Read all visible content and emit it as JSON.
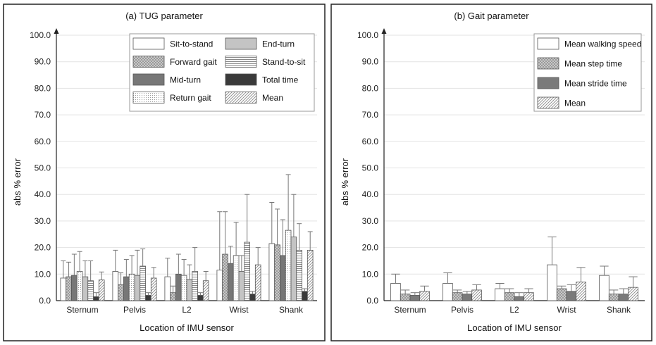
{
  "colors": {
    "sit_to_stand": "#ffffff",
    "forward_gait": "#b8b8b8",
    "mid_turn": "#777777",
    "return_gait": "#ececec",
    "end_turn": "#c4c4c4",
    "stand_to_sit": "#f0f0f0",
    "total_time": "#3a3a3a",
    "mean": "#e8e8e8",
    "mean_walking_speed": "#ffffff",
    "mean_step_time": "#b5b5b5",
    "mean_stride_time": "#7a7a7a"
  },
  "chart_data": [
    {
      "type": "bar",
      "title": "(a) TUG parameter",
      "xlabel": "Location of IMU sensor",
      "ylabel": "abs % error",
      "ylim": [
        0,
        100
      ],
      "yticks": [
        "0.0",
        "10.0",
        "20.0",
        "30.0",
        "40.0",
        "50.0",
        "60.0",
        "70.0",
        "80.0",
        "90.0",
        "100.0"
      ],
      "grid": true,
      "legend": "top-right",
      "categories": [
        "Sternum",
        "Pelvis",
        "L2",
        "Wrist",
        "Shank"
      ],
      "series": [
        {
          "name": "Sit-to-stand",
          "key": "sit_to_stand",
          "pattern": "none",
          "values": [
            8.5,
            11.0,
            9.0,
            11.5,
            21.5
          ],
          "errors": [
            6.5,
            8.0,
            7.0,
            22.0,
            15.5
          ]
        },
        {
          "name": "Forward gait",
          "key": "forward_gait",
          "pattern": "checker",
          "values": [
            9.0,
            6.0,
            3.0,
            17.5,
            21.0
          ],
          "errors": [
            5.5,
            4.5,
            2.5,
            16.0,
            13.5
          ]
        },
        {
          "name": "Mid-turn",
          "key": "mid_turn",
          "pattern": "none",
          "values": [
            9.5,
            9.0,
            10.0,
            14.0,
            17.0
          ],
          "errors": [
            8.0,
            6.5,
            7.5,
            6.5,
            13.5
          ]
        },
        {
          "name": "Return gait",
          "key": "return_gait",
          "pattern": "dots",
          "values": [
            11.0,
            10.0,
            9.5,
            17.0,
            26.5
          ],
          "errors": [
            7.5,
            7.0,
            6.0,
            12.5,
            21.0
          ]
        },
        {
          "name": "End-turn",
          "key": "end_turn",
          "pattern": "none",
          "values": [
            9.0,
            9.5,
            8.0,
            11.0,
            24.0
          ],
          "errors": [
            6.0,
            9.5,
            5.5,
            6.0,
            16.0
          ]
        },
        {
          "name": "Stand-to-sit",
          "key": "stand_to_sit",
          "pattern": "hlines",
          "values": [
            7.5,
            13.0,
            11.0,
            22.0,
            19.0
          ],
          "errors": [
            7.5,
            6.5,
            9.0,
            18.0,
            10.0
          ]
        },
        {
          "name": "Total time",
          "key": "total_time",
          "pattern": "none",
          "values": [
            1.5,
            2.0,
            2.0,
            2.5,
            3.5
          ],
          "errors": [
            1.5,
            1.0,
            1.0,
            1.0,
            1.0
          ]
        },
        {
          "name": "Mean",
          "key": "mean",
          "pattern": "diag",
          "values": [
            7.8,
            8.5,
            7.5,
            13.5,
            19.0
          ],
          "errors": [
            3.0,
            4.0,
            3.5,
            6.5,
            7.0
          ]
        }
      ]
    },
    {
      "type": "bar",
      "title": "(b) Gait parameter",
      "xlabel": "Location of IMU sensor",
      "ylabel": "abs % error",
      "ylim": [
        0,
        100
      ],
      "yticks": [
        "0.0",
        "10.0",
        "20.0",
        "30.0",
        "40.0",
        "50.0",
        "60.0",
        "70.0",
        "80.0",
        "90.0",
        "100.0"
      ],
      "grid": true,
      "legend": "top-right",
      "categories": [
        "Sternum",
        "Pelvis",
        "L2",
        "Wrist",
        "Shank"
      ],
      "series": [
        {
          "name": "Mean walking speed",
          "key": "mean_walking_speed",
          "pattern": "none",
          "values": [
            6.5,
            6.5,
            4.5,
            13.5,
            9.5
          ],
          "errors": [
            3.5,
            4.0,
            2.0,
            10.5,
            3.5
          ]
        },
        {
          "name": "Mean step time",
          "key": "mean_step_time",
          "pattern": "checker",
          "values": [
            2.5,
            3.0,
            3.0,
            4.5,
            2.5
          ],
          "errors": [
            1.5,
            1.0,
            1.5,
            1.0,
            1.5
          ]
        },
        {
          "name": "Mean stride time",
          "key": "mean_stride_time",
          "pattern": "none",
          "values": [
            2.0,
            2.5,
            1.5,
            3.5,
            2.5
          ],
          "errors": [
            1.0,
            1.0,
            1.5,
            2.5,
            2.0
          ]
        },
        {
          "name": "Mean",
          "key": "mean",
          "pattern": "diag",
          "values": [
            3.5,
            4.0,
            3.0,
            7.0,
            5.0
          ],
          "errors": [
            2.0,
            2.0,
            1.5,
            5.5,
            4.0
          ]
        }
      ]
    }
  ]
}
